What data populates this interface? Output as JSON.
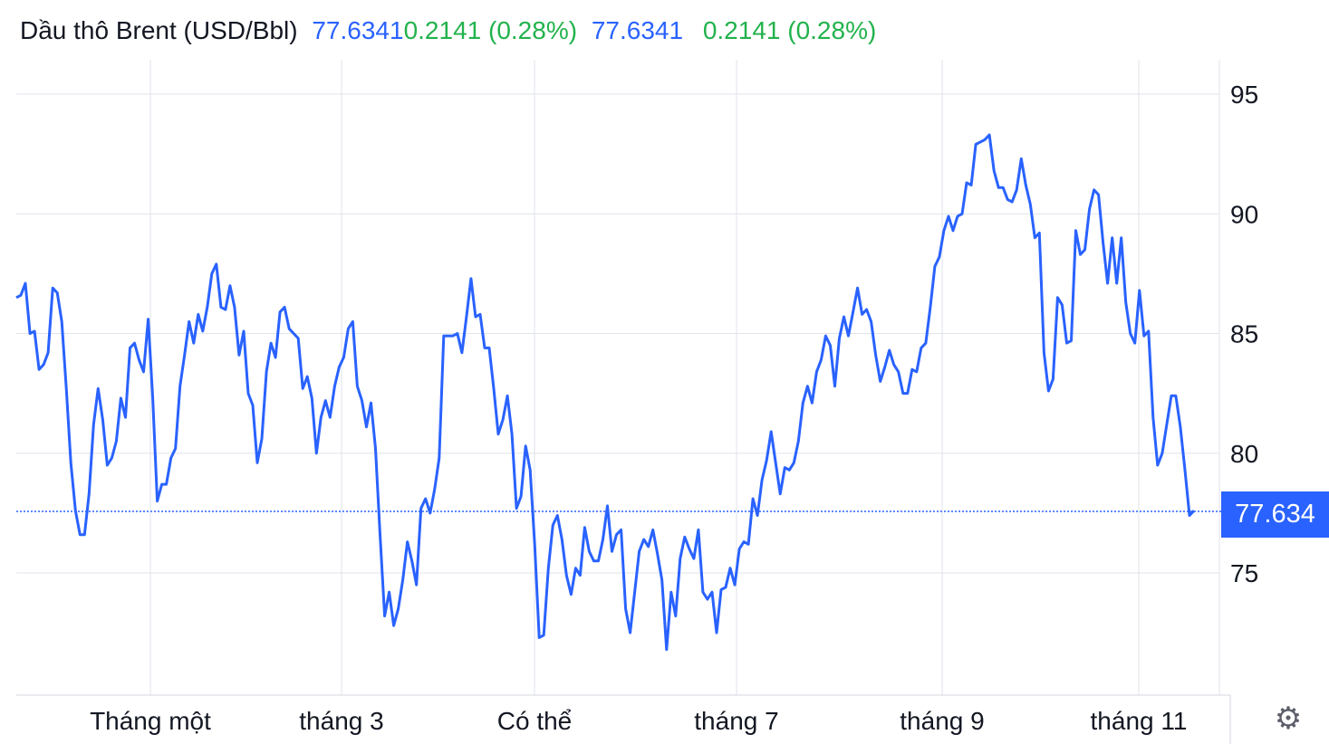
{
  "header": {
    "title": "Dầu thô Brent (USD/Bbl)",
    "price_a": "77.6341",
    "change_a": "0.2141 (0.28%)",
    "price_b": "77.6341",
    "change_b": "0.2141 (0.28%)"
  },
  "colors": {
    "line": "#2962ff",
    "up": "#22b24c",
    "grid": "#e0e3eb"
  },
  "current_price_label": "77.634",
  "settings_icon": "gear-icon",
  "chart_data": {
    "type": "line",
    "ylim": [
      70.5,
      97
    ],
    "y_ticks": [
      "95",
      "90",
      "85",
      "80",
      "75"
    ],
    "x_ticks": [
      "Tháng một",
      "tháng 3",
      "Có thể",
      "tháng 7",
      "tháng 9",
      "tháng 11"
    ],
    "current_value": 77.634,
    "grid": true,
    "values": [
      86.5,
      86.6,
      87.1,
      85.0,
      85.1,
      83.5,
      83.7,
      84.2,
      86.9,
      86.7,
      85.5,
      82.7,
      79.6,
      77.6,
      76.6,
      76.6,
      78.3,
      81.2,
      82.7,
      81.4,
      79.5,
      79.8,
      80.5,
      82.3,
      81.5,
      84.4,
      84.6,
      83.9,
      83.4,
      85.6,
      82.3,
      78.0,
      78.7,
      78.7,
      79.8,
      80.2,
      82.8,
      84.1,
      85.5,
      84.6,
      85.8,
      85.1,
      86.1,
      87.5,
      87.9,
      86.1,
      86.0,
      87.0,
      86.1,
      84.1,
      85.1,
      82.5,
      82.0,
      79.6,
      80.6,
      83.4,
      84.6,
      84.0,
      85.9,
      86.1,
      85.2,
      85.0,
      84.8,
      82.7,
      83.2,
      82.3,
      80.0,
      81.5,
      82.2,
      81.5,
      82.8,
      83.6,
      84.0,
      85.2,
      85.5,
      82.8,
      82.2,
      81.1,
      82.1,
      80.2,
      76.6,
      73.2,
      74.2,
      72.8,
      73.5,
      74.7,
      76.3,
      75.5,
      74.5,
      77.7,
      78.1,
      77.5,
      78.5,
      79.8,
      84.9,
      84.9,
      84.9,
      85.0,
      84.2,
      85.7,
      87.3,
      85.7,
      85.8,
      84.4,
      84.4,
      82.7,
      80.8,
      81.4,
      82.4,
      80.8,
      77.7,
      78.2,
      80.3,
      79.3,
      76.2,
      72.3,
      72.4,
      75.2,
      77.0,
      77.4,
      76.4,
      74.9,
      74.1,
      75.2,
      74.9,
      76.9,
      75.9,
      75.5,
      75.5,
      76.4,
      77.8,
      75.9,
      76.6,
      76.8,
      73.5,
      72.5,
      74.2,
      75.9,
      76.4,
      76.1,
      76.8,
      75.8,
      74.7,
      71.8,
      74.2,
      73.2,
      75.6,
      76.5,
      76.0,
      75.6,
      76.8,
      74.2,
      73.9,
      74.2,
      72.5,
      74.3,
      74.4,
      75.2,
      74.5,
      76.0,
      76.3,
      76.2,
      78.1,
      77.4,
      78.9,
      79.7,
      80.9,
      79.6,
      78.3,
      79.4,
      79.3,
      79.6,
      80.5,
      82.1,
      82.8,
      82.1,
      83.4,
      83.9,
      84.9,
      84.5,
      82.8,
      84.8,
      85.7,
      84.9,
      85.9,
      86.9,
      85.8,
      86.0,
      85.5,
      84.1,
      83.0,
      83.6,
      84.3,
      83.7,
      83.4,
      82.5,
      82.5,
      83.5,
      83.4,
      84.4,
      84.6,
      86.1,
      87.8,
      88.2,
      89.3,
      89.9,
      89.3,
      89.9,
      90.0,
      91.3,
      91.2,
      92.9,
      93.0,
      93.1,
      93.3,
      91.8,
      91.1,
      91.1,
      90.6,
      90.5,
      91.0,
      92.3,
      91.2,
      90.4,
      89.0,
      89.2,
      84.2,
      82.6,
      83.1,
      86.5,
      86.2,
      84.6,
      84.7,
      89.3,
      88.3,
      88.5,
      90.2,
      91.0,
      90.8,
      88.8,
      87.1,
      89.0,
      87.1,
      89.0,
      86.3,
      85.0,
      84.6,
      86.8,
      84.9,
      85.1,
      81.5,
      79.5,
      80.0,
      81.2,
      82.4,
      82.4,
      81.1,
      79.3,
      77.4,
      77.6
    ]
  }
}
